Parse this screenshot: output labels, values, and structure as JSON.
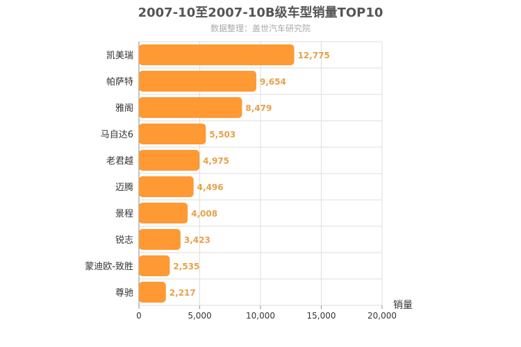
{
  "chart_data": {
    "type": "bar",
    "orientation": "horizontal",
    "title": "2007-10至2007-10B级车型销量TOP10",
    "subtitle": "数据整理：盖世汽车研究院",
    "xlabel": "销量",
    "categories": [
      "凯美瑞",
      "帕萨特",
      "雅阁",
      "马自达6",
      "老君越",
      "迈腾",
      "景程",
      "锐志",
      "蒙迪欧-致胜",
      "尊驰"
    ],
    "values": [
      12775,
      9654,
      8479,
      5503,
      4975,
      4496,
      4008,
      3423,
      2535,
      2217
    ],
    "value_labels": [
      "12,775",
      "9,654",
      "8,479",
      "5,503",
      "4,975",
      "4,496",
      "4,008",
      "3,423",
      "2,535",
      "2,217"
    ],
    "xlim": [
      0,
      20000
    ],
    "xticks": [
      0,
      5000,
      10000,
      15000,
      20000
    ],
    "xtick_labels": [
      "0",
      "5,000",
      "10,000",
      "15,000",
      "20,000"
    ],
    "grid": true,
    "colors": {
      "bar": "#ff9933",
      "value_label": "#e8a048",
      "grid": "#dddddd"
    }
  }
}
